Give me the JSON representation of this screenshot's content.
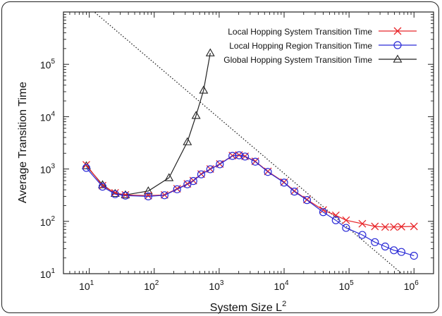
{
  "chart_data": {
    "type": "line",
    "title": "",
    "xlabel": "System Size L",
    "xlabel_sup": "2",
    "ylabel": "Average Transition Time",
    "x_scale": "log",
    "y_scale": "log",
    "xlim": [
      4,
      2000000
    ],
    "ylim": [
      10,
      1000000
    ],
    "x_ticks": [
      {
        "value": 10,
        "base": "10",
        "exp": "1"
      },
      {
        "value": 100,
        "base": "10",
        "exp": "2"
      },
      {
        "value": 1000,
        "base": "10",
        "exp": "3"
      },
      {
        "value": 10000,
        "base": "10",
        "exp": "4"
      },
      {
        "value": 100000,
        "base": "10",
        "exp": "5"
      },
      {
        "value": 1000000,
        "base": "10",
        "exp": "6"
      }
    ],
    "y_ticks": [
      {
        "value": 10,
        "base": "10",
        "exp": "1"
      },
      {
        "value": 100,
        "base": "10",
        "exp": "2"
      },
      {
        "value": 1000,
        "base": "10",
        "exp": "3"
      },
      {
        "value": 10000,
        "base": "10",
        "exp": "4"
      },
      {
        "value": 100000,
        "base": "10",
        "exp": "5"
      }
    ],
    "grid": false,
    "legend_position": "top-right",
    "series": [
      {
        "name": "Local Hopping System Transition Time",
        "color": "#e8262a",
        "marker": "x",
        "x": [
          9,
          16,
          25,
          36,
          81,
          144,
          225,
          324,
          400,
          529,
          729,
          1024,
          1600,
          2025,
          2500,
          3600,
          5625,
          10000,
          14400,
          22500,
          40000,
          62500,
          90000,
          160000,
          250000,
          360000,
          490000,
          640000,
          1000000
        ],
        "y": [
          1200,
          480,
          350,
          320,
          310,
          320,
          420,
          520,
          600,
          800,
          1000,
          1250,
          1800,
          1850,
          1750,
          1400,
          900,
          560,
          380,
          260,
          165,
          130,
          105,
          90,
          80,
          78,
          78,
          79,
          80
        ]
      },
      {
        "name": "Local Hopping Region Transition Time",
        "color": "#2b2bd6",
        "marker": "o",
        "x": [
          9,
          16,
          25,
          36,
          81,
          144,
          225,
          324,
          400,
          529,
          729,
          1024,
          1600,
          2025,
          2500,
          3600,
          5625,
          10000,
          14400,
          22500,
          40000,
          62500,
          90000,
          160000,
          250000,
          360000,
          490000,
          640000,
          1000000
        ],
        "y": [
          1050,
          460,
          330,
          310,
          300,
          315,
          410,
          510,
          590,
          790,
          990,
          1230,
          1780,
          1830,
          1730,
          1380,
          880,
          550,
          370,
          255,
          150,
          105,
          75,
          55,
          40,
          33,
          28,
          26,
          22
        ]
      },
      {
        "name": "Global Hopping System Transition Time",
        "color": "#222222",
        "marker": "triangle",
        "x": [
          9,
          16,
          25,
          36,
          81,
          169,
          324,
          441,
          576,
          729
        ],
        "y": [
          1150,
          500,
          340,
          320,
          380,
          680,
          3300,
          10500,
          32000,
          165000
        ]
      }
    ],
    "reference_line": {
      "style": "dotted",
      "color": "#222222",
      "x": [
        9,
        650000
      ],
      "y": [
        1350000,
        10
      ]
    }
  }
}
